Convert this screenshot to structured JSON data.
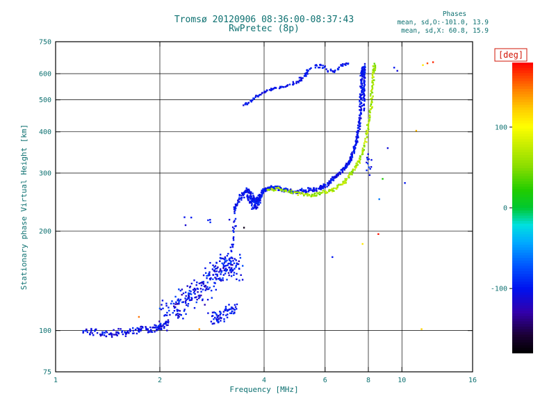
{
  "title": {
    "line1": "Tromsø 20120906 08:36:00-08:37:43",
    "line2": "RwPretec (8p)"
  },
  "phase_stats": {
    "header": "Phases",
    "o_line": "mean, sd,O:-101.0, 13.9",
    "x_line": "mean, sd,X:  60.8, 15.9"
  },
  "colors": {
    "text_teal": "#0c7070",
    "axis_black": "#000000",
    "deg_red": "#d21404",
    "background": "#ffffff"
  },
  "colorbar": {
    "unit_label": "[deg]",
    "min": -180,
    "max": 180,
    "tick_values": [
      100,
      0,
      -100
    ],
    "stops": [
      [
        0.0,
        "#000000"
      ],
      [
        0.06,
        "#1a0033"
      ],
      [
        0.14,
        "#3300aa"
      ],
      [
        0.22,
        "#0011ee"
      ],
      [
        0.3,
        "#0055ff"
      ],
      [
        0.38,
        "#00aaff"
      ],
      [
        0.44,
        "#00e0e0"
      ],
      [
        0.5,
        "#00c830"
      ],
      [
        0.56,
        "#22cc00"
      ],
      [
        0.64,
        "#88dd00"
      ],
      [
        0.72,
        "#ccee00"
      ],
      [
        0.78,
        "#ffff00"
      ],
      [
        0.84,
        "#ffcc00"
      ],
      [
        0.9,
        "#ff8800"
      ],
      [
        0.95,
        "#ff4400"
      ],
      [
        1.0,
        "#ff0000"
      ]
    ]
  },
  "chart_data": {
    "type": "scatter",
    "title": "Tromsø 20120906 08:36:00-08:37:43 — RwPretec (8p)",
    "xlabel": "Frequency [MHz]",
    "ylabel": "Stationary phase Virtual Height [km]",
    "color_variable": "phase [deg]",
    "x_axis": {
      "scale": "log",
      "min": 1,
      "max": 16,
      "tick_labels": [
        1,
        2,
        4,
        6,
        8,
        10,
        16
      ],
      "gridlines": [
        2,
        4,
        6,
        8,
        10
      ]
    },
    "y_axis": {
      "scale": "log",
      "min": 75,
      "max": 750,
      "tick_labels": [
        75,
        100,
        200,
        300,
        400,
        500,
        600,
        750
      ],
      "gridlines": [
        100,
        200,
        300,
        400,
        500,
        600
      ]
    },
    "traces": [
      {
        "name": "e-region-floor",
        "phase_mean": -105,
        "phase_sd": 14,
        "n": 150,
        "f_jitter": 0.022,
        "h_jitter": 0.03,
        "path": [
          [
            1.2,
            100
          ],
          [
            1.45,
            98
          ],
          [
            1.7,
            100
          ],
          [
            1.95,
            102
          ],
          [
            2.1,
            105
          ]
        ]
      },
      {
        "name": "e-region-cloud",
        "phase_mean": -100,
        "phase_sd": 22,
        "n": 290,
        "f_jitter": 0.065,
        "h_jitter": 0.11,
        "path": [
          [
            2.05,
            110
          ],
          [
            2.25,
            118
          ],
          [
            2.45,
            126
          ],
          [
            2.65,
            134
          ],
          [
            2.85,
            144
          ],
          [
            3.05,
            154
          ],
          [
            3.2,
            163
          ],
          [
            3.35,
            152
          ]
        ]
      },
      {
        "name": "e-cloud-low-tail",
        "phase_mean": -100,
        "phase_sd": 18,
        "n": 70,
        "f_jitter": 0.04,
        "h_jitter": 0.06,
        "path": [
          [
            2.8,
            108
          ],
          [
            3.05,
            112
          ],
          [
            3.3,
            118
          ]
        ]
      },
      {
        "name": "e-spike-column",
        "phase_mean": -102,
        "phase_sd": 10,
        "n": 22,
        "f_jitter": 0.012,
        "h_jitter": 0.05,
        "path": [
          [
            3.22,
            172
          ],
          [
            3.28,
            200
          ],
          [
            3.3,
            228
          ]
        ]
      },
      {
        "name": "sparse-mid-dots",
        "phase_mean": -100,
        "phase_sd": 15,
        "n": 7,
        "f_jitter": 0.1,
        "h_jitter": 0.05,
        "path": [
          [
            2.35,
            212
          ],
          [
            2.75,
            222
          ],
          [
            3.05,
            215
          ]
        ]
      },
      {
        "name": "f-trace-wiggle-plateau",
        "phase_mean": -101,
        "phase_sd": 12,
        "n": 280,
        "f_jitter": 0.016,
        "h_jitter": 0.018,
        "path": [
          [
            3.27,
            232
          ],
          [
            3.45,
            258
          ],
          [
            3.6,
            268
          ],
          [
            3.72,
            250
          ],
          [
            3.85,
            248
          ],
          [
            4.0,
            266
          ],
          [
            4.2,
            272
          ],
          [
            4.5,
            268
          ],
          [
            4.9,
            262
          ],
          [
            5.3,
            266
          ],
          [
            5.8,
            270
          ],
          [
            6.05,
            275
          ]
        ]
      },
      {
        "name": "f-wiggle-knot",
        "phase_mean": -101,
        "phase_sd": 12,
        "n": 70,
        "f_jitter": 0.02,
        "h_jitter": 0.045,
        "path": [
          [
            3.55,
            258
          ],
          [
            3.68,
            242
          ],
          [
            3.8,
            240
          ],
          [
            3.9,
            254
          ]
        ]
      },
      {
        "name": "o-mode-upturn",
        "phase_mean": -101,
        "phase_sd": 12,
        "n": 250,
        "f_jitter": 0.011,
        "h_jitter": 0.016,
        "path": [
          [
            6.1,
            278
          ],
          [
            6.4,
            292
          ],
          [
            6.9,
            312
          ],
          [
            7.1,
            330
          ],
          [
            7.3,
            356
          ],
          [
            7.45,
            390
          ],
          [
            7.57,
            437
          ],
          [
            7.63,
            510
          ],
          [
            7.66,
            575
          ],
          [
            7.69,
            628
          ]
        ]
      },
      {
        "name": "o-asymptote-strand",
        "phase_mean": -101,
        "phase_sd": 10,
        "n": 55,
        "f_jitter": 0.006,
        "h_jitter": 0.03,
        "path": [
          [
            7.76,
            470
          ],
          [
            7.79,
            560
          ],
          [
            7.81,
            632
          ]
        ]
      },
      {
        "name": "upper-arc",
        "phase_mean": -101,
        "phase_sd": 12,
        "n": 90,
        "f_jitter": 0.014,
        "h_jitter": 0.012,
        "path": [
          [
            3.5,
            480
          ],
          [
            3.8,
            512
          ],
          [
            4.15,
            538
          ],
          [
            4.55,
            546
          ],
          [
            4.95,
            562
          ],
          [
            5.25,
            594
          ],
          [
            5.42,
            620
          ]
        ]
      },
      {
        "name": "upper-clusters",
        "phase_mean": -100,
        "phase_sd": 14,
        "n": 40,
        "f_jitter": 0.012,
        "h_jitter": 0.02,
        "path": [
          [
            5.6,
            626
          ],
          [
            5.85,
            632
          ],
          [
            6.1,
            616
          ],
          [
            6.4,
            610
          ],
          [
            6.7,
            638
          ],
          [
            7.0,
            648
          ]
        ]
      },
      {
        "name": "x-mode-trace",
        "phase_mean": 62,
        "phase_sd": 20,
        "n": 240,
        "f_jitter": 0.011,
        "h_jitter": 0.015,
        "path": [
          [
            4.1,
            266
          ],
          [
            4.45,
            270
          ],
          [
            4.85,
            262
          ],
          [
            5.25,
            258
          ],
          [
            5.65,
            258
          ],
          [
            6.05,
            263
          ],
          [
            6.45,
            269
          ],
          [
            6.85,
            283
          ],
          [
            7.15,
            300
          ],
          [
            7.45,
            320
          ],
          [
            7.7,
            348
          ],
          [
            7.9,
            388
          ],
          [
            8.05,
            432
          ],
          [
            8.15,
            482
          ],
          [
            8.22,
            540
          ],
          [
            8.28,
            600
          ],
          [
            8.32,
            642
          ]
        ]
      },
      {
        "name": "between-trace-dots",
        "phase_mean": -100,
        "phase_sd": 20,
        "n": 12,
        "f_jitter": 0.02,
        "h_jitter": 0.07,
        "path": [
          [
            7.9,
            300
          ],
          [
            8.0,
            340
          ],
          [
            8.1,
            300
          ]
        ]
      }
    ],
    "extra_points": [
      [
        1.74,
        110,
        150
      ],
      [
        2.6,
        101,
        140
      ],
      [
        7.7,
        183,
        110
      ],
      [
        8.55,
        196,
        175
      ],
      [
        8.8,
        288,
        20
      ],
      [
        9.5,
        626,
        -100
      ],
      [
        9.7,
        612,
        -110
      ],
      [
        11.0,
        403,
        130
      ],
      [
        11.5,
        637,
        110
      ],
      [
        11.85,
        645,
        160
      ],
      [
        11.4,
        101,
        120
      ],
      [
        6.3,
        167,
        -100
      ],
      [
        9.1,
        357,
        -110
      ],
      [
        3.5,
        205,
        -170
      ],
      [
        12.3,
        650,
        170
      ],
      [
        8.6,
        250,
        -60
      ],
      [
        10.2,
        280,
        -100
      ]
    ]
  }
}
